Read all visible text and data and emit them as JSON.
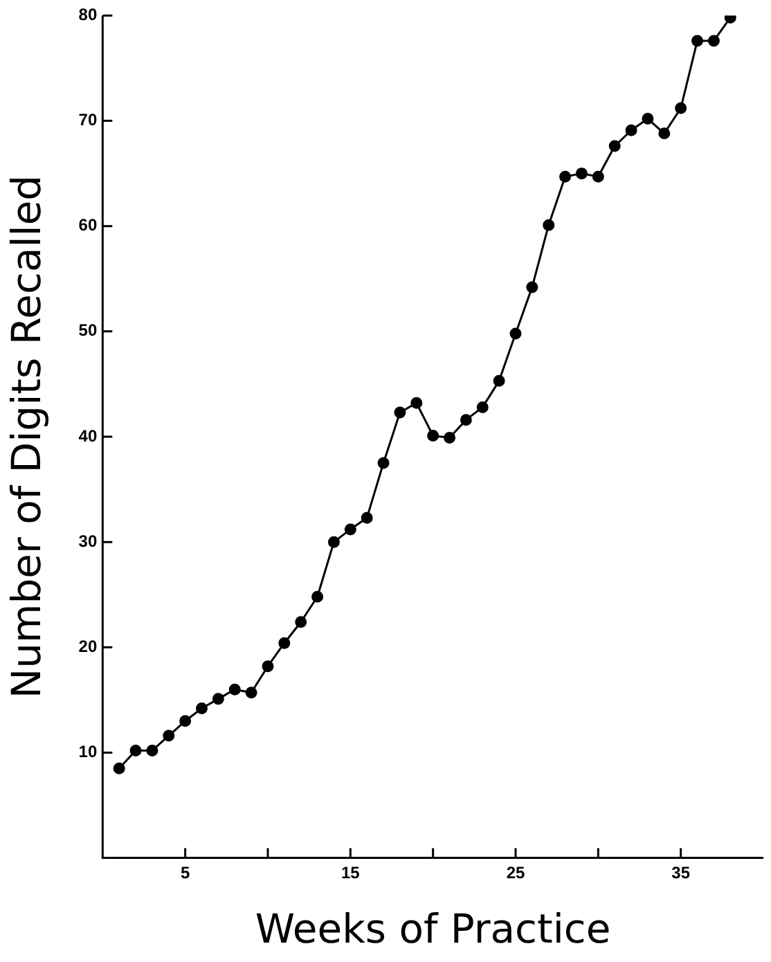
{
  "chart_data": {
    "type": "line",
    "xlabel": "Weeks of Practice",
    "ylabel": "Number of Digits Recalled",
    "x": [
      1,
      2,
      3,
      4,
      5,
      6,
      7,
      8,
      9,
      10,
      11,
      12,
      13,
      14,
      15,
      16,
      17,
      18,
      19,
      20,
      21,
      22,
      23,
      24,
      25,
      26,
      27,
      28,
      29,
      30,
      31,
      32,
      33,
      34,
      35,
      36,
      37,
      38
    ],
    "series": [
      {
        "color": "#000000",
        "values": [
          8.5,
          10.2,
          10.2,
          11.6,
          13,
          14.2,
          15.1,
          16,
          15.7,
          18.2,
          20.4,
          22.4,
          24.8,
          30,
          31.2,
          32.3,
          37.5,
          42.3,
          43.2,
          40.1,
          39.9,
          41.6,
          42.8,
          45.3,
          49.8,
          54.2,
          60.1,
          64.7,
          65,
          64.7,
          67.6,
          69.1,
          70.2,
          68.8,
          71.2,
          77.6,
          77.6,
          79.8
        ]
      }
    ],
    "xlim": [
      0,
      40
    ],
    "xticks": [
      5,
      {
        "value": 10,
        "label": null
      },
      15,
      {
        "value": 20,
        "label": null
      },
      25,
      {
        "value": 30,
        "label": null
      },
      35
    ],
    "ylim": [
      0,
      80
    ],
    "yticks": [
      10,
      20,
      30,
      40,
      50,
      60,
      70,
      80
    ],
    "marker": "circle",
    "line_style": "solid",
    "grid": false,
    "legend": false
  }
}
